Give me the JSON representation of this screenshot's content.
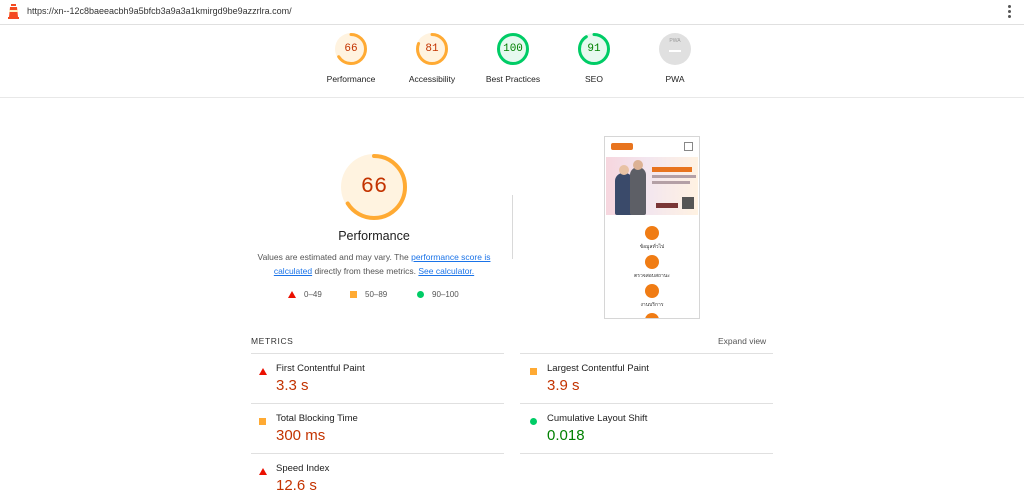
{
  "browser": {
    "url": "https://xn--12c8baeeacbh9a5bfcb3a9a3a1kmirgd9be9azzrlra.com/"
  },
  "gauges": [
    {
      "label": "Performance",
      "score": "66",
      "color": "#fa3",
      "fraction": 0.66
    },
    {
      "label": "Accessibility",
      "score": "81",
      "color": "#fa3",
      "fraction": 0.81
    },
    {
      "label": "Best Practices",
      "score": "100",
      "color": "#0c6",
      "fraction": 1.0
    },
    {
      "label": "SEO",
      "score": "91",
      "color": "#0c6",
      "fraction": 0.91
    },
    {
      "label": "PWA",
      "score": "",
      "color": "#cccccc",
      "fraction": 0,
      "badge_text": "PWA"
    }
  ],
  "performance": {
    "score": "66",
    "fraction": 0.66,
    "title": "Performance",
    "desc_prefix": "Values are estimated and may vary. The ",
    "desc_link1": "performance score is calculated",
    "desc_middle": " directly from these metrics. ",
    "desc_link2": "See calculator."
  },
  "legend": [
    {
      "shape": "triangle",
      "text": "0–49",
      "color": "#eb0f00"
    },
    {
      "shape": "square",
      "text": "50–89",
      "color": "#fa3"
    },
    {
      "shape": "circle",
      "text": "90–100",
      "color": "#0c6"
    }
  ],
  "thumbnail": {
    "captions": [
      "ข้อมูลทั่วไป",
      "ตรวจสอบสถานะ",
      "งานบริการ"
    ]
  },
  "metrics": {
    "heading": "METRICS",
    "expand_label": "Expand view",
    "items": [
      {
        "name": "First Contentful Paint",
        "value": "3.3 s",
        "status": "fail"
      },
      {
        "name": "Largest Contentful Paint",
        "value": "3.9 s",
        "status": "average"
      },
      {
        "name": "Total Blocking Time",
        "value": "300 ms",
        "status": "average"
      },
      {
        "name": "Cumulative Layout Shift",
        "value": "0.018",
        "status": "pass"
      },
      {
        "name": "Speed Index",
        "value": "12.6 s",
        "status": "fail"
      }
    ]
  },
  "colors": {
    "fail": "#eb0f00",
    "average": "#fa3",
    "pass": "#0c6",
    "fail_text": "#c33300",
    "average_text": "#c33300",
    "pass_text": "#008000",
    "link": "#1a73e8"
  }
}
